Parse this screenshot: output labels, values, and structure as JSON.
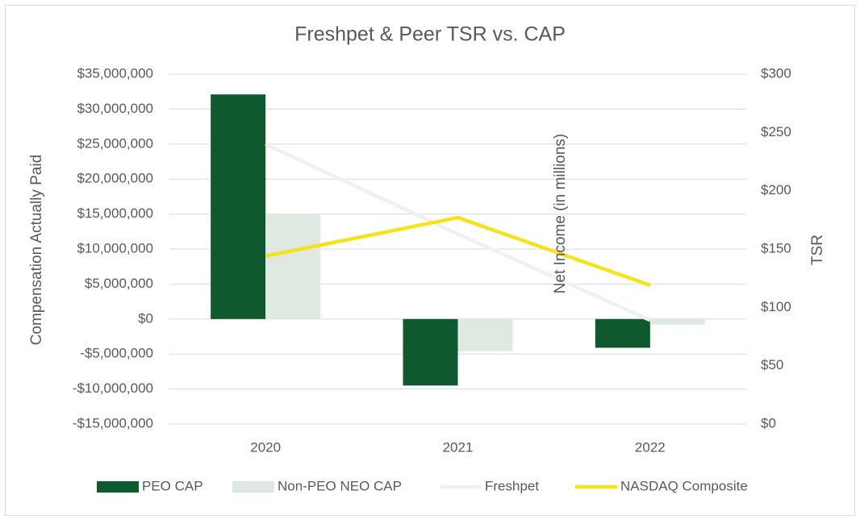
{
  "chart_data": {
    "type": "bar",
    "title": "Freshpet & Peer TSR vs. CAP",
    "y_label": "Compensation Actually Paid",
    "y2_label": "TSR",
    "annotation": "Net Income (in millions)",
    "categories": [
      "2020",
      "2021",
      "2022"
    ],
    "series": [
      {
        "name": "PEO CAP",
        "type": "bar",
        "color": "#0e5a2e",
        "values": [
          32100000,
          -9500000,
          -4100000
        ]
      },
      {
        "name": "Non-PEO NEO CAP",
        "type": "bar",
        "color": "#dfe9e2",
        "values": [
          15000000,
          -4600000,
          -800000
        ]
      },
      {
        "name": "Freshpet",
        "type": "line",
        "axis": "y2",
        "color": "#eef2ef",
        "values": [
          240,
          163,
          89
        ]
      },
      {
        "name": "NASDAQ Composite",
        "type": "line",
        "axis": "y2",
        "color": "#f5e31a",
        "values": [
          144,
          177,
          119
        ]
      }
    ],
    "ylim": [
      -15000000,
      35000000
    ],
    "yticks": [
      {
        "value": -15000000,
        "label": "-$15,000,000"
      },
      {
        "value": -10000000,
        "label": "-$10,000,000"
      },
      {
        "value": -5000000,
        "label": "-$5,000,000"
      },
      {
        "value": 0,
        "label": "$0"
      },
      {
        "value": 5000000,
        "label": "$5,000,000"
      },
      {
        "value": 10000000,
        "label": "$10,000,000"
      },
      {
        "value": 15000000,
        "label": "$15,000,000"
      },
      {
        "value": 20000000,
        "label": "$20,000,000"
      },
      {
        "value": 25000000,
        "label": "$25,000,000"
      },
      {
        "value": 30000000,
        "label": "$30,000,000"
      },
      {
        "value": 35000000,
        "label": "$35,000,000"
      }
    ],
    "y2lim": [
      0,
      300
    ],
    "y2ticks": [
      {
        "value": 0,
        "label": "$0"
      },
      {
        "value": 50,
        "label": "$50"
      },
      {
        "value": 100,
        "label": "$100"
      },
      {
        "value": 150,
        "label": "$150"
      },
      {
        "value": 200,
        "label": "$200"
      },
      {
        "value": 250,
        "label": "$250"
      },
      {
        "value": 300,
        "label": "$300"
      }
    ],
    "grid": true,
    "legend": "bottom"
  }
}
